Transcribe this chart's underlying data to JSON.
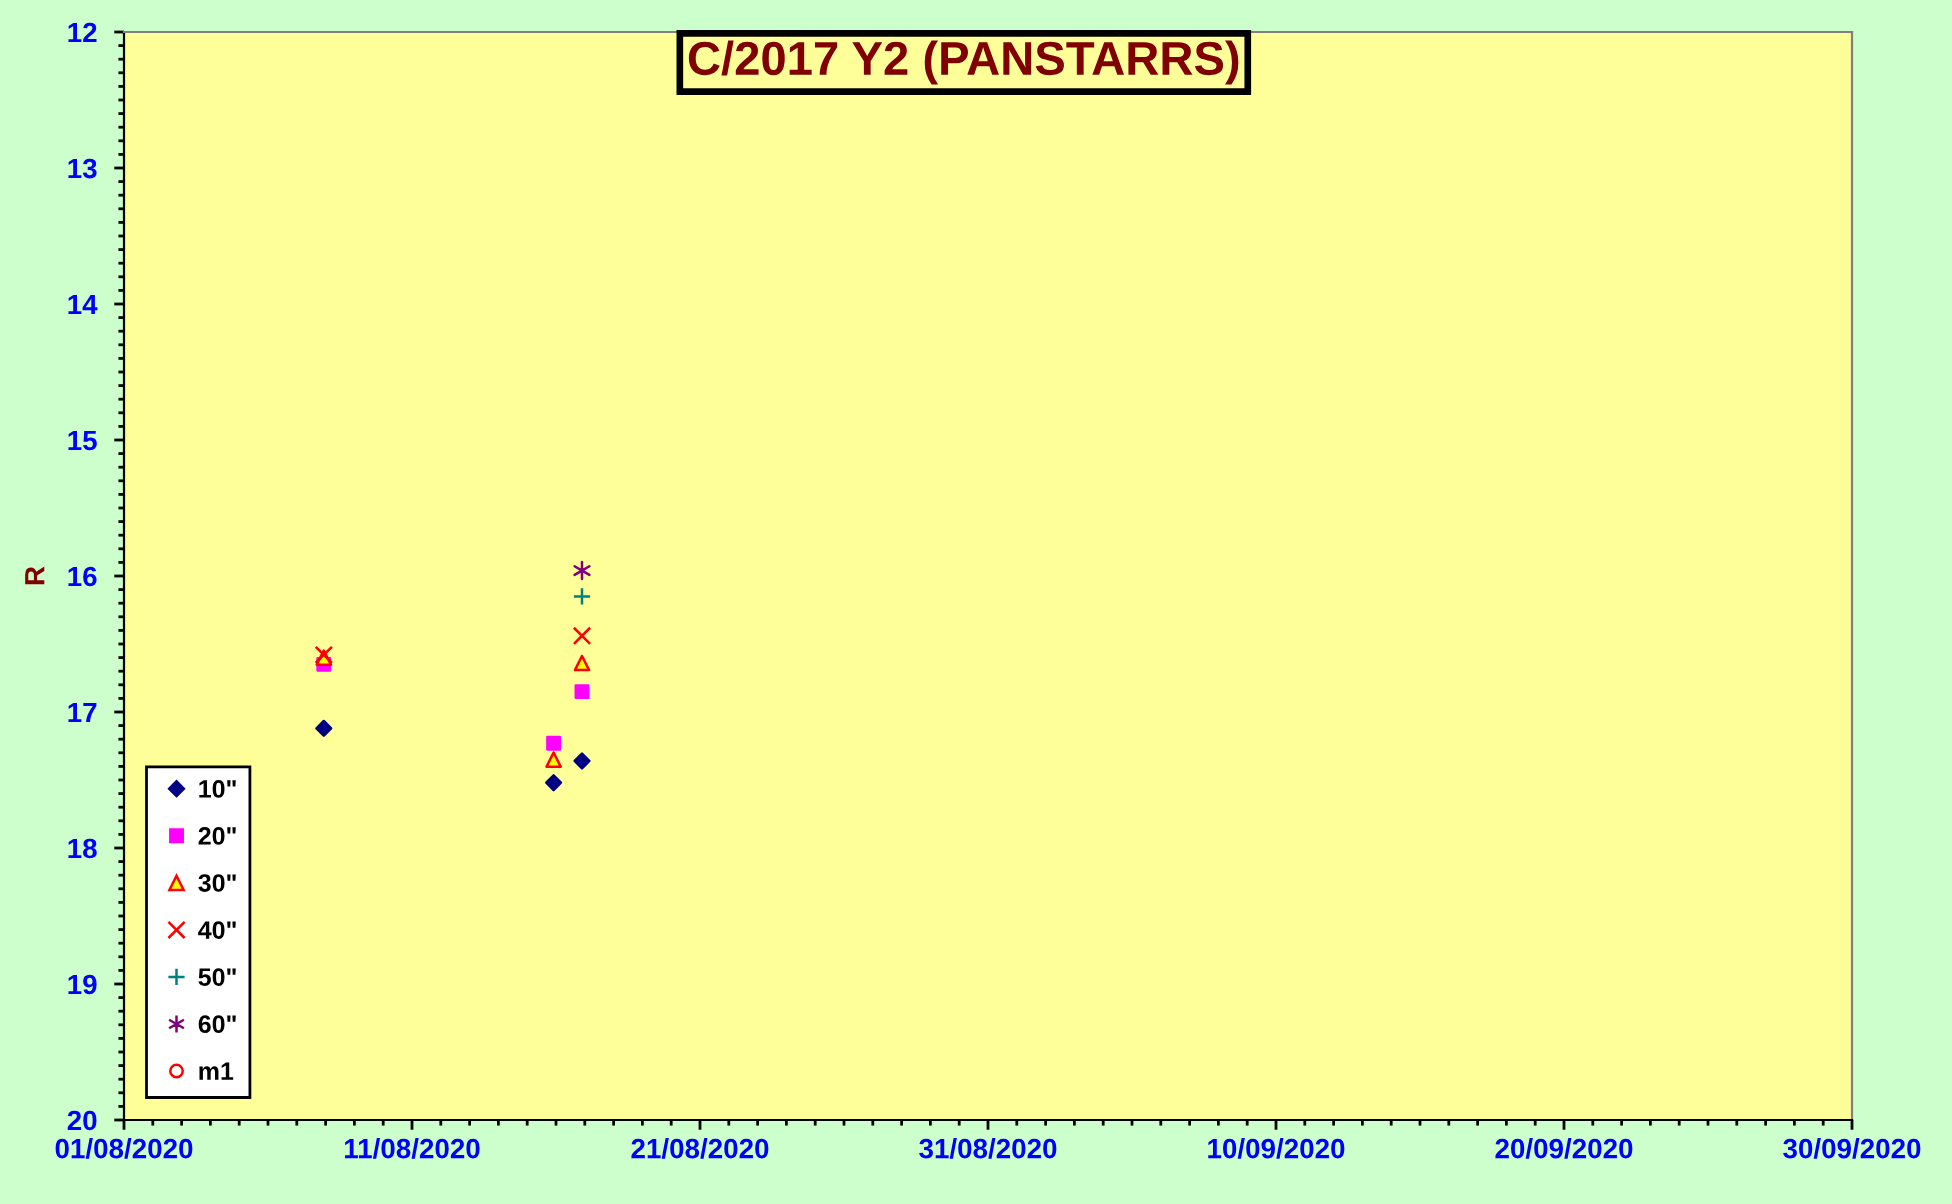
{
  "chart_data": {
    "type": "scatter",
    "title": "C/2017 Y2 (PANSTARRS)",
    "ylabel": "R",
    "x": [
      "2020-08-07T22:30",
      "2020-08-15T22:00",
      "2020-08-16T21:40"
    ],
    "series": [
      {
        "name": "10\"",
        "color": "#000080",
        "marker": "diamond",
        "values": [
          17.12,
          17.52,
          17.36
        ]
      },
      {
        "name": "20\"",
        "color": "#ff00ff",
        "marker": "square",
        "values": [
          16.65,
          17.23,
          16.85
        ]
      },
      {
        "name": "30\"",
        "color": "#ff0000",
        "marker": "triangle",
        "values": [
          16.6,
          17.35,
          16.64
        ]
      },
      {
        "name": "40\"",
        "color": "#ff0000",
        "marker": "x",
        "values": [
          16.58,
          null,
          16.44
        ]
      },
      {
        "name": "50\"",
        "color": "#008080",
        "marker": "cross",
        "values": [
          null,
          null,
          16.15
        ]
      },
      {
        "name": "60\"",
        "color": "#800080",
        "values": [
          null,
          null,
          15.96
        ]
      },
      {
        "name": "m1",
        "color": "#ff0000",
        "marker": "circle",
        "values": [
          null,
          null,
          null
        ]
      }
    ],
    "xlim": [
      "2020-08-01",
      "2020-09-30"
    ],
    "xticks": [
      {
        "value": "2020-08-01",
        "label": "01/08/2020"
      },
      {
        "value": "2020-08-11",
        "label": "11/08/2020"
      },
      {
        "value": "2020-08-21",
        "label": "21/08/2020"
      },
      {
        "value": "2020-08-31",
        "label": "31/08/2020"
      },
      {
        "value": "2020-09-10",
        "label": "10/09/2020"
      },
      {
        "value": "2020-09-20",
        "label": "20/09/2020"
      },
      {
        "value": "2020-09-30",
        "label": "30/09/2020"
      }
    ],
    "ylim": [
      20,
      12
    ],
    "yticks": [
      12,
      13,
      14,
      15,
      16,
      17,
      18,
      19,
      20
    ],
    "legend": "bottom left"
  }
}
